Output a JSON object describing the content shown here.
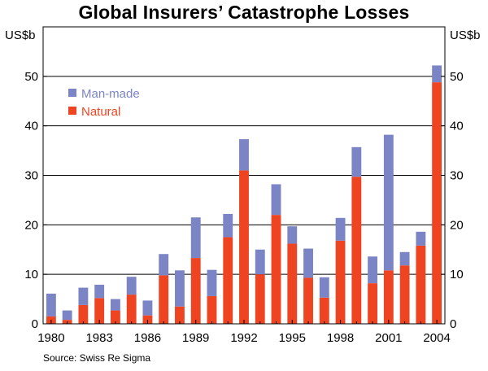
{
  "chart_data": {
    "type": "bar",
    "stacked": true,
    "title": "Global Insurers’ Catastrophe Losses",
    "source": "Source: Swiss Re Sigma",
    "y_unit_left": "US$b",
    "y_unit_right": "US$b",
    "ylim": [
      0,
      60
    ],
    "yticks": [
      0,
      10,
      20,
      30,
      40,
      50
    ],
    "xlim": [
      1980,
      2004
    ],
    "xticks": [
      1980,
      1983,
      1986,
      1989,
      1992,
      1995,
      1998,
      2001,
      2004
    ],
    "legend": {
      "placement": "top-left"
    },
    "years": [
      1980,
      1981,
      1982,
      1983,
      1984,
      1985,
      1986,
      1987,
      1988,
      1989,
      1990,
      1991,
      1992,
      1993,
      1994,
      1995,
      1996,
      1997,
      1998,
      1999,
      2000,
      2001,
      2002,
      2003,
      2004
    ],
    "series": [
      {
        "name": "Natural",
        "color": "#ee4422",
        "values": [
          1.5,
          0.8,
          3.8,
          5.2,
          2.7,
          5.9,
          1.7,
          9.8,
          3.5,
          13.3,
          5.6,
          17.5,
          31.0,
          10.0,
          22.0,
          16.2,
          9.3,
          5.3,
          16.8,
          29.7,
          8.2,
          10.8,
          11.8,
          15.8,
          48.8
        ]
      },
      {
        "name": "Man-made",
        "color": "#7b84c4",
        "values": [
          4.6,
          1.9,
          3.5,
          2.7,
          2.3,
          3.6,
          3.0,
          4.3,
          7.3,
          8.2,
          5.3,
          4.7,
          6.3,
          5.0,
          6.2,
          3.5,
          5.9,
          4.1,
          4.6,
          6.0,
          5.4,
          27.4,
          2.7,
          2.8,
          3.4
        ]
      }
    ]
  }
}
